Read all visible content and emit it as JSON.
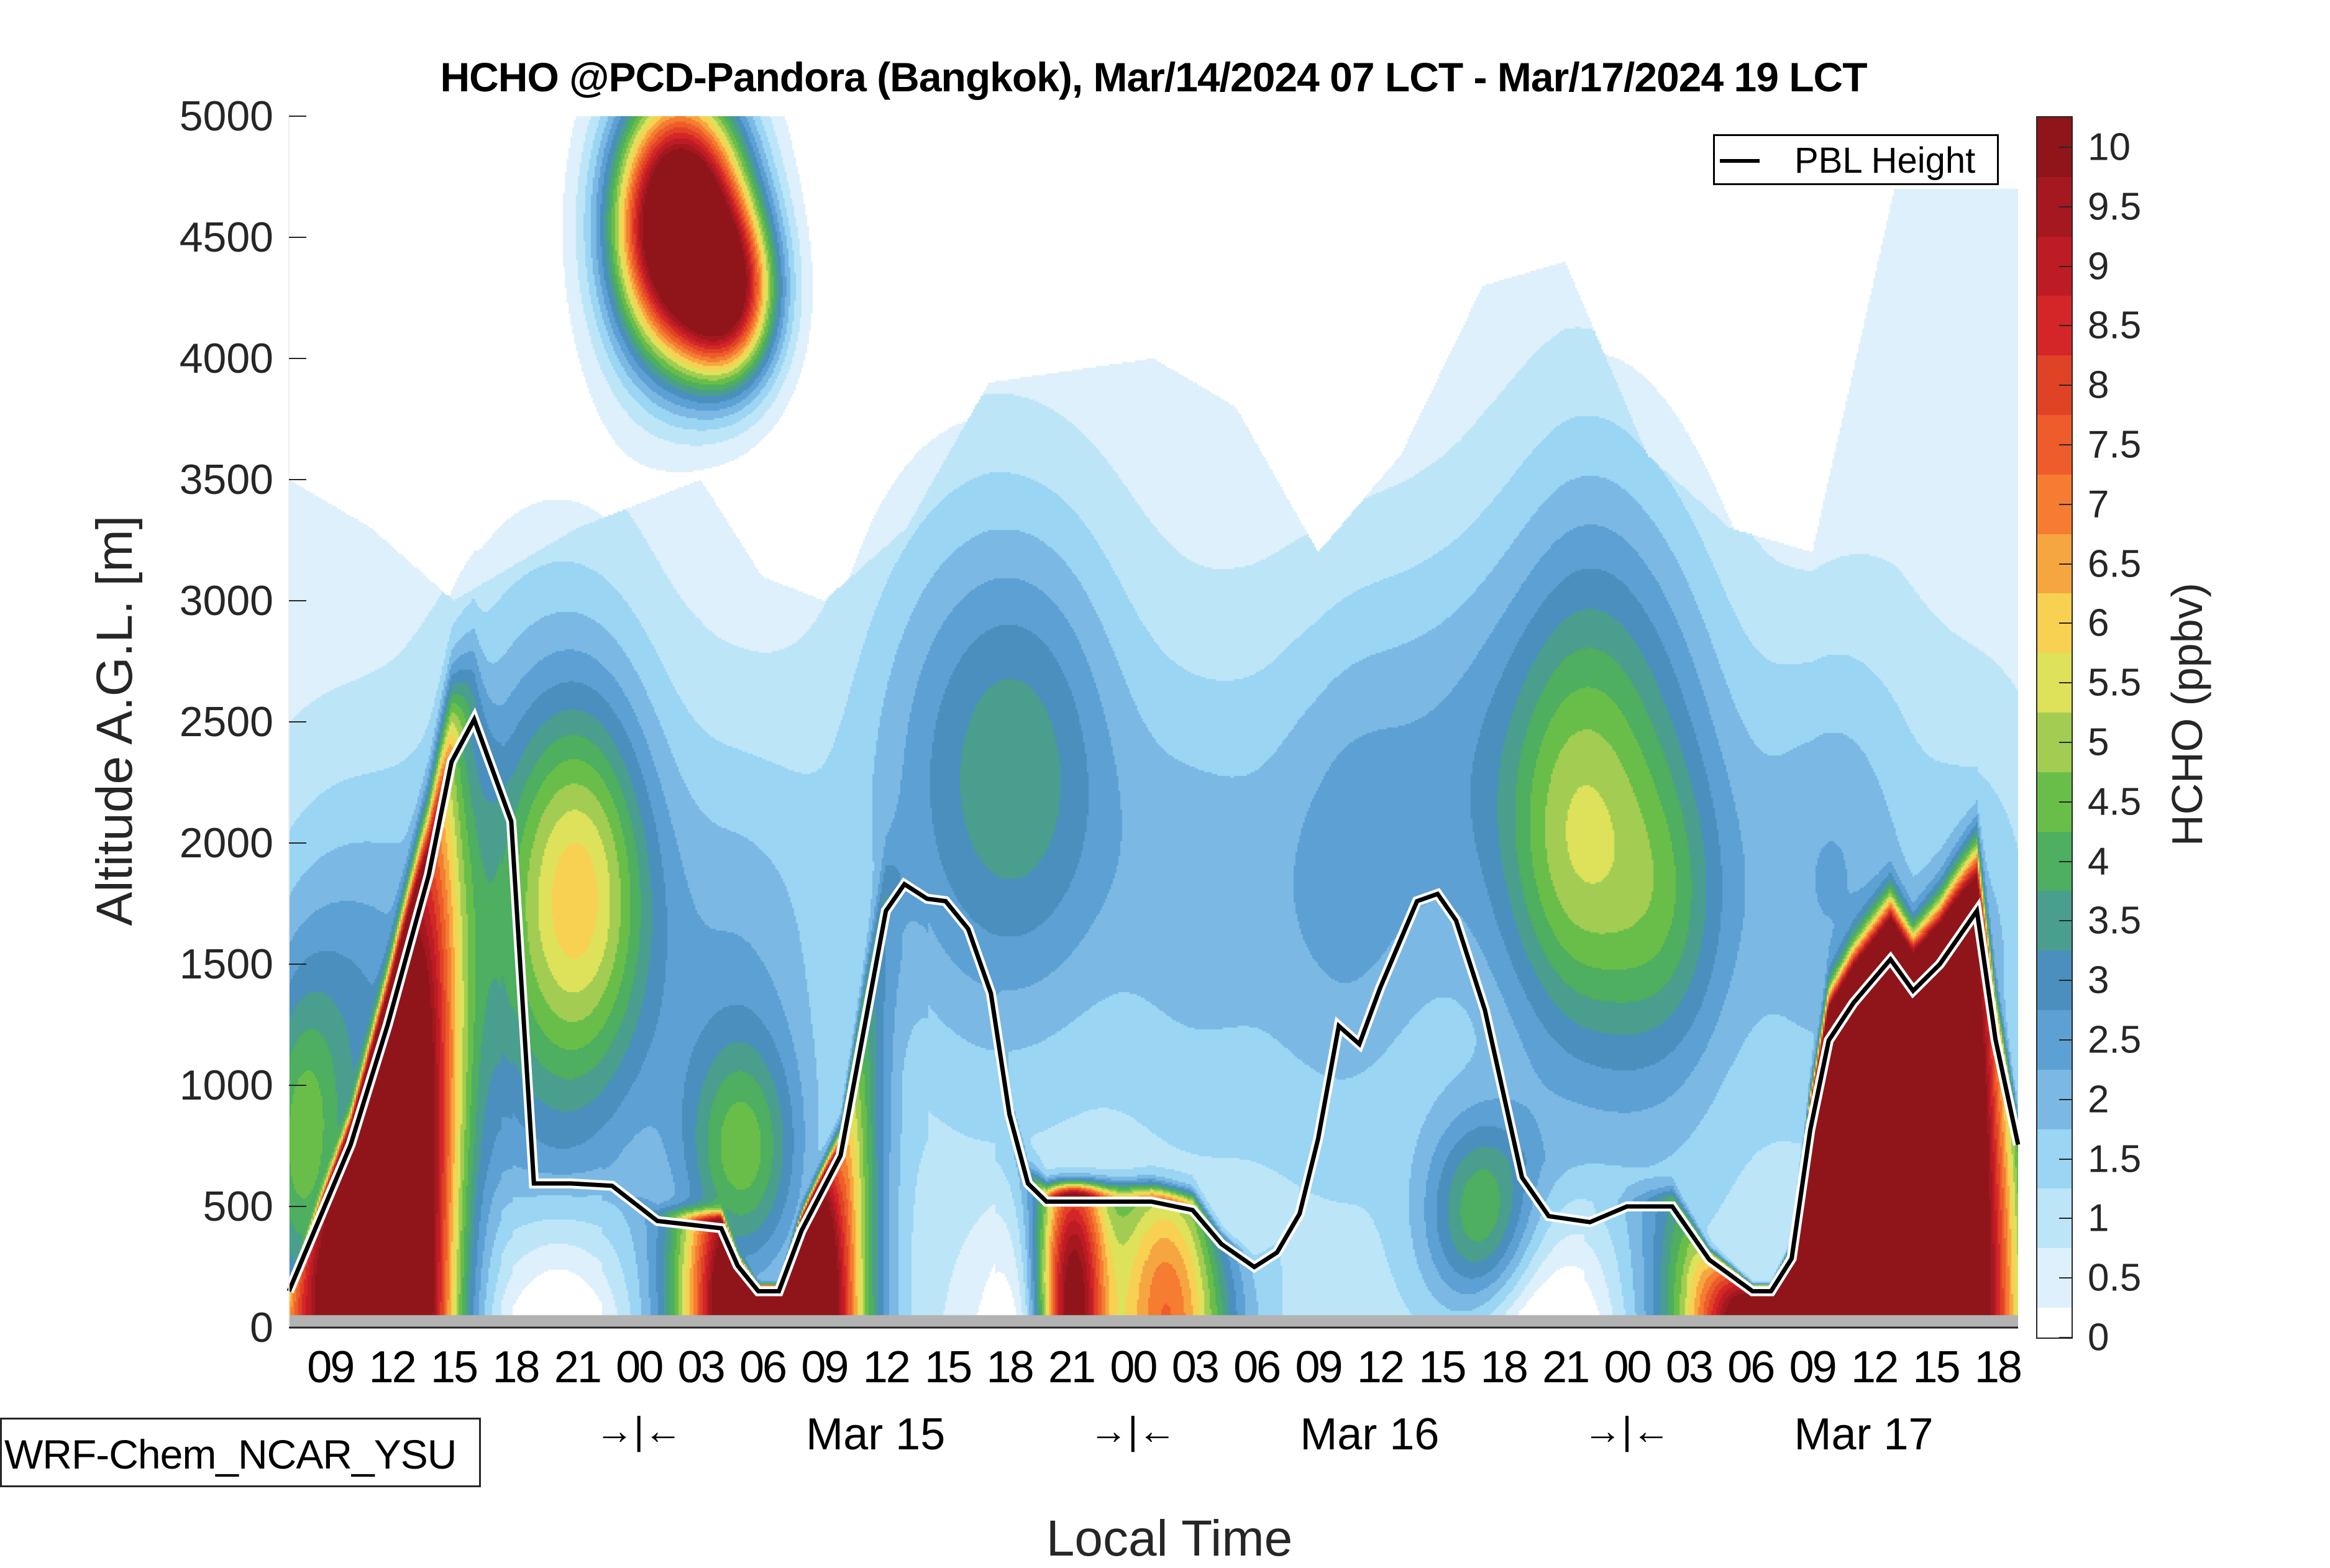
{
  "chart_data": {
    "type": "heatmap",
    "title": "HCHO @PCD-Pandora (Bangkok), Mar/14/2024 07 LCT - Mar/17/2024 19 LCT",
    "xlabel": "Local Time",
    "ylabel": "Altitude A.G.L. [m]",
    "colorbar_label": "HCHO (ppbv)",
    "xlim_hours": [
      0,
      84
    ],
    "ylim": [
      0,
      5000
    ],
    "y_ticks": [
      "0",
      "500",
      "1000",
      "1500",
      "2000",
      "2500",
      "3000",
      "3500",
      "4000",
      "4500",
      "5000"
    ],
    "y_tick_values": [
      0,
      500,
      1000,
      1500,
      2000,
      2500,
      3000,
      3500,
      4000,
      4500,
      5000
    ],
    "x_ticks": [
      "09",
      "12",
      "15",
      "18",
      "21",
      "00",
      "03",
      "06",
      "09",
      "12",
      "15",
      "18",
      "21",
      "00",
      "03",
      "06",
      "09",
      "12",
      "15",
      "18",
      "21",
      "00",
      "03",
      "06",
      "09",
      "12",
      "15",
      "18"
    ],
    "x_tick_hours": [
      2,
      5,
      8,
      11,
      14,
      17,
      20,
      23,
      26,
      29,
      32,
      35,
      38,
      41,
      44,
      47,
      50,
      53,
      56,
      59,
      62,
      65,
      68,
      71,
      74,
      77,
      80,
      83
    ],
    "day_labels": [
      {
        "text": "Mar 15",
        "hour": 28.5
      },
      {
        "text": "Mar 16",
        "hour": 52.5
      },
      {
        "text": "Mar 17",
        "hour": 76.5
      }
    ],
    "day_separators": [
      {
        "text": "→|←",
        "hour": 17
      },
      {
        "text": "→|←",
        "hour": 41
      },
      {
        "text": "→|←",
        "hour": 65
      }
    ],
    "colorbar_ticks": [
      "0",
      "0.5",
      "1",
      "1.5",
      "2",
      "2.5",
      "3",
      "3.5",
      "4",
      "4.5",
      "5",
      "5.5",
      "6",
      "6.5",
      "7",
      "7.5",
      "8",
      "8.5",
      "9",
      "9.5",
      "10"
    ],
    "colorbar_levels": [
      0,
      0.5,
      1,
      1.5,
      2,
      2.5,
      3,
      3.5,
      4,
      4.5,
      5,
      5.5,
      6,
      6.5,
      7,
      7.5,
      8,
      8.5,
      9,
      9.5,
      10
    ],
    "colorbar_max": 10.25,
    "colors": [
      "#ffffff",
      "#ddf0fb",
      "#bde5f8",
      "#9ad5f3",
      "#7bb9e4",
      "#5ca0d4",
      "#4a8fbd",
      "#4a9e8d",
      "#4daf5f",
      "#69be4a",
      "#a2cd52",
      "#dde25a",
      "#f8d052",
      "#f6a640",
      "#f57c30",
      "#ed5c2a",
      "#e04226",
      "#d42628",
      "#bd1c24",
      "#a51820",
      "#8f151b"
    ],
    "series": [
      {
        "name": "PBL Height",
        "color": "#000000",
        "hours": [
          0,
          3,
          4.8,
          6.8,
          7.9,
          9,
          10.8,
          11.9,
          13.7,
          15.7,
          17.9,
          21,
          21.8,
          22.8,
          23.8,
          24.9,
          26.8,
          29,
          29.9,
          31,
          31.9,
          33,
          34.1,
          35,
          35.9,
          36.8,
          41.9,
          43.9,
          45.3,
          46.9,
          48,
          49.1,
          50,
          51,
          52,
          53,
          54.8,
          55.8,
          56.7,
          58.1,
          59.9,
          61.2,
          63.2,
          65,
          67.2,
          69,
          71.1,
          72,
          73,
          73.9,
          74.8,
          76,
          77.8,
          78.9,
          80.2,
          82,
          82.9,
          84
        ],
        "values": [
          150,
          755,
          1250,
          1870,
          2335,
          2510,
          2090,
          595,
          595,
          585,
          440,
          410,
          255,
          150,
          150,
          400,
          710,
          1720,
          1830,
          1770,
          1760,
          1645,
          1380,
          880,
          595,
          520,
          520,
          485,
          345,
          250,
          310,
          470,
          780,
          1245,
          1170,
          1400,
          1760,
          1790,
          1680,
          1310,
          620,
          460,
          435,
          500,
          500,
          280,
          150,
          150,
          285,
          815,
          1185,
          1340,
          1520,
          1390,
          1500,
          1720,
          1190,
          755
        ]
      }
    ],
    "ground_band_color": "#b3b3b3"
  },
  "legend": {
    "label": "PBL Height"
  },
  "model_label": "WRF-Chem_NCAR_YSU"
}
